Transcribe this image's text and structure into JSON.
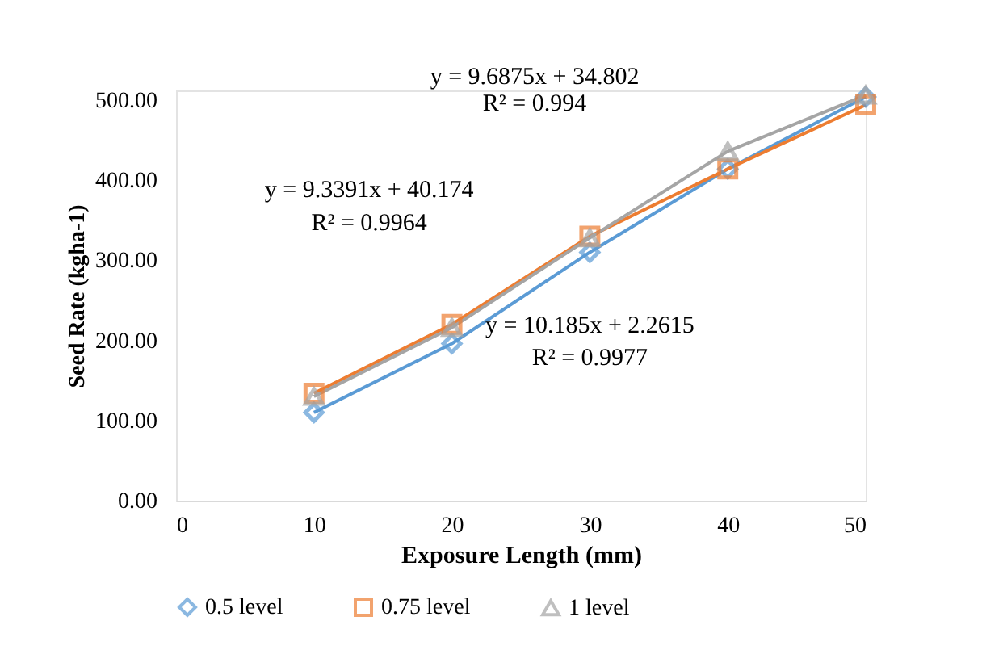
{
  "chart_data": {
    "type": "line",
    "xlabel": "Exposure Length (mm)",
    "ylabel": "Seed Rate (kgha-1)",
    "x": [
      10,
      20,
      30,
      40,
      50
    ],
    "series": [
      {
        "name": "0.5 level",
        "color": "#5b9bd5",
        "marker": "diamond",
        "values": [
          110,
          196,
          310,
          414,
          504
        ]
      },
      {
        "name": "0.75 level",
        "color": "#ed7d31",
        "marker": "square",
        "values": [
          134,
          220,
          330,
          414,
          494
        ]
      },
      {
        "name": "1 level",
        "color": "#a5a5a5",
        "marker": "triangle",
        "values": [
          130,
          216,
          328,
          436,
          506
        ]
      }
    ],
    "xlim": [
      0,
      50
    ],
    "xticks": [
      0,
      10,
      20,
      30,
      40,
      50
    ],
    "ylim": [
      0,
      512
    ],
    "yticks": [
      {
        "value": 0,
        "label": "0.00"
      },
      {
        "value": 100,
        "label": "100.00"
      },
      {
        "value": 200,
        "label": "200.00"
      },
      {
        "value": 300,
        "label": "300.00"
      },
      {
        "value": 400,
        "label": "400.00"
      },
      {
        "value": 500,
        "label": "500.00"
      }
    ],
    "annotations": [
      "y = 9.6875x + 34.802",
      "R² = 0.994",
      "y = 9.3391x + 40.174",
      "R² = 0.9964",
      "y = 10.185x + 2.2615",
      "R² = 0.9977"
    ],
    "grid": false,
    "legend": "bottom",
    "line_style": "solid"
  }
}
